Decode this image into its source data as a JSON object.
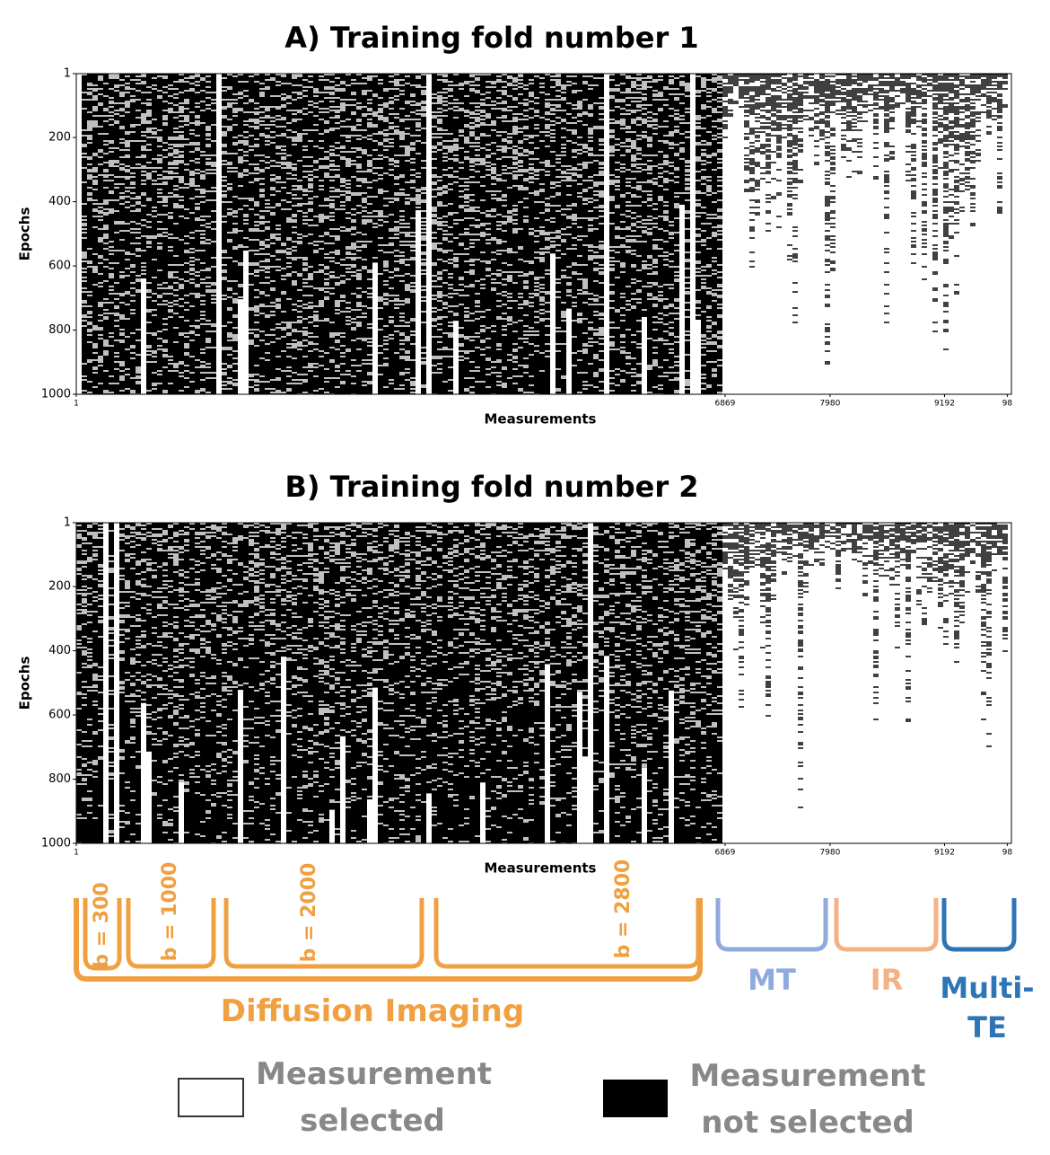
{
  "panels": [
    {
      "title": "A) Training fold number 1",
      "y_label": "Epochs",
      "x_label": "Measurements",
      "ylim": [
        1,
        1000
      ],
      "yticks": [
        1,
        200,
        400,
        600,
        800,
        1000
      ],
      "xlim": [
        1,
        9900
      ],
      "xticks": [
        1,
        6869,
        7980,
        9192,
        {
          "value": 9856,
          "label": "98"
        }
      ]
    },
    {
      "title": "B) Training fold number 2",
      "y_label": "Epochs",
      "x_label": "Measurements",
      "ylim": [
        1,
        1000
      ],
      "yticks": [
        1,
        200,
        400,
        600,
        800,
        1000
      ],
      "xlim": [
        1,
        9900
      ],
      "xticks": [
        1,
        6869,
        7980,
        9192,
        {
          "value": 9856,
          "label": "98"
        }
      ]
    }
  ],
  "groups": [
    {
      "label": "b = 300"
    },
    {
      "label": "b = 1000"
    },
    {
      "label": "b = 2000"
    },
    {
      "label": "b = 2800"
    }
  ],
  "modalities": [
    {
      "label": "Diffusion Imaging"
    },
    {
      "label": "MT"
    },
    {
      "label": "IR"
    },
    {
      "label": "Multi-TE"
    }
  ],
  "legend": [
    {
      "label": "Measurement selected"
    },
    {
      "label": "Measurement not selected"
    }
  ]
}
